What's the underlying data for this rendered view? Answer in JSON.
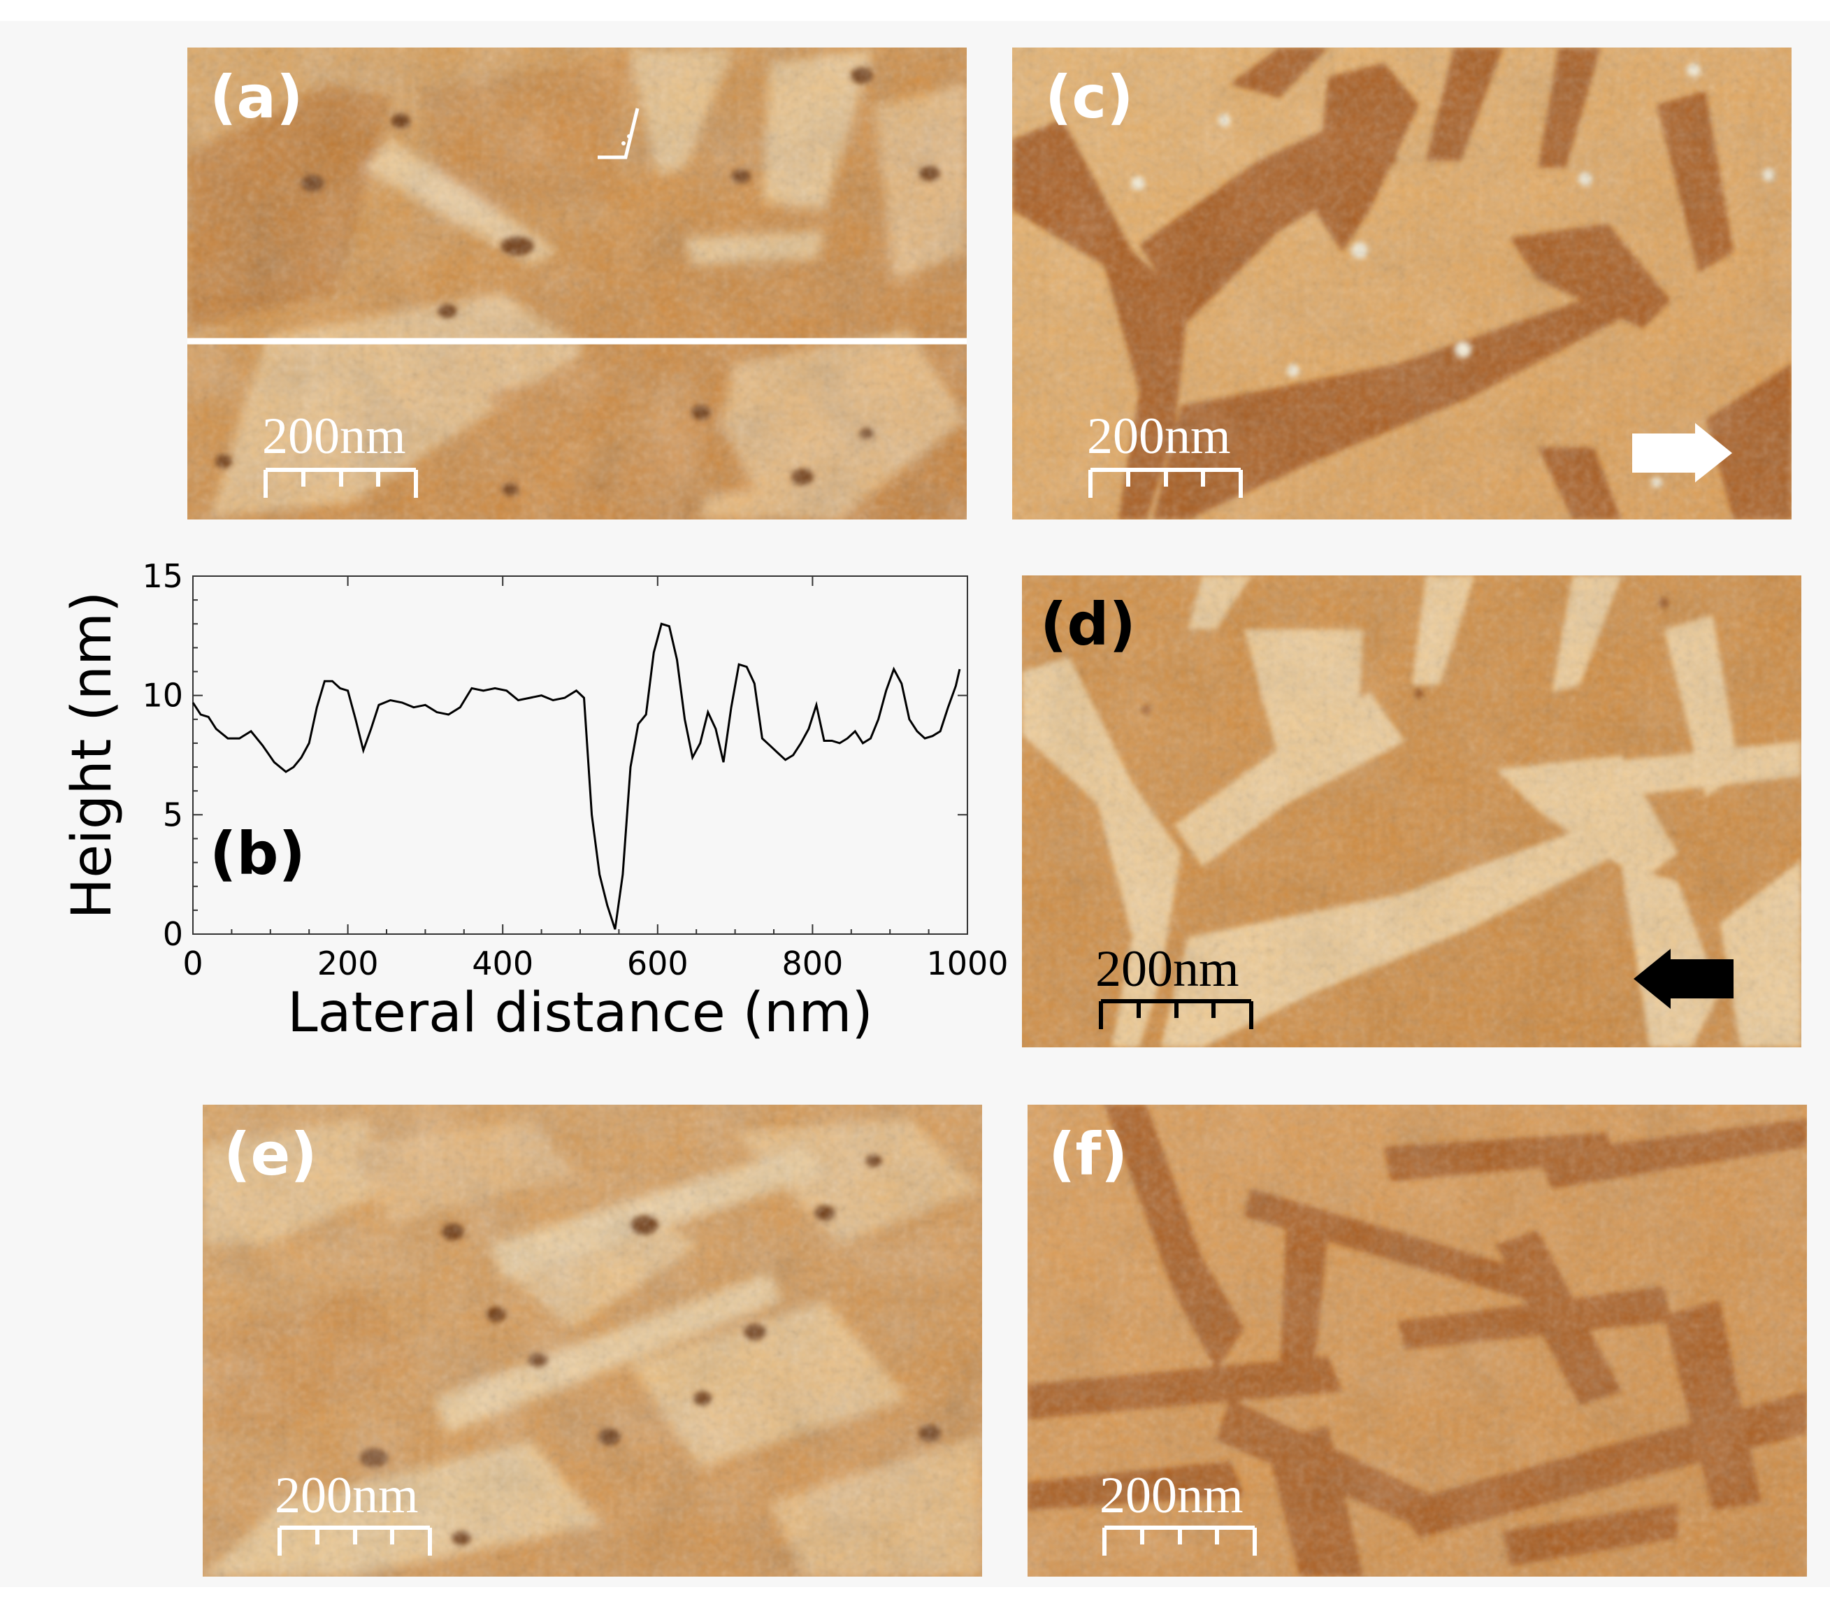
{
  "figure": {
    "panels": [
      {
        "id": "a",
        "label": "(a)",
        "scale_bar": "200nm",
        "label_color": "#ffffff",
        "type": "afm-height"
      },
      {
        "id": "c",
        "label": "(c)",
        "scale_bar": "200nm",
        "label_color": "#ffffff",
        "type": "afm-phase",
        "arrow": "right",
        "arrow_color": "#ffffff"
      },
      {
        "id": "d",
        "label": "(d)",
        "scale_bar": "200nm",
        "label_color": "#000000",
        "type": "afm-amplitude",
        "arrow": "left",
        "arrow_color": "#000000"
      },
      {
        "id": "e",
        "label": "(e)",
        "scale_bar": "200nm",
        "label_color": "#ffffff",
        "type": "afm-height"
      },
      {
        "id": "f",
        "label": "(f)",
        "scale_bar": "200nm",
        "label_color": "#ffffff",
        "type": "afm-phase"
      }
    ],
    "colors": {
      "afm_dark": "#7a3a08",
      "afm_mid": "#c97a2c",
      "afm_light": "#f3cf98",
      "plot_background": "#f7f7f7",
      "line_profile": "#000000"
    }
  },
  "chart_data": {
    "type": "line",
    "panel_label": "(b)",
    "xlabel": "Lateral distance (nm)",
    "ylabel": "Height (nm)",
    "xlim": [
      0,
      1000
    ],
    "ylim": [
      0,
      15
    ],
    "xticks": [
      0,
      200,
      400,
      600,
      800,
      1000
    ],
    "yticks": [
      0,
      5,
      10,
      15
    ],
    "grid": false,
    "series": [
      {
        "x": [
          0,
          10,
          20,
          30,
          45,
          60,
          75,
          90,
          105,
          120,
          130,
          140,
          150,
          160,
          170,
          180,
          190,
          200,
          210,
          220,
          230,
          240,
          255,
          270,
          285,
          300,
          315,
          330,
          345,
          360,
          375,
          390,
          405,
          420,
          435,
          450,
          465,
          480,
          495,
          505,
          515,
          525,
          535,
          545,
          555,
          565,
          575,
          585,
          595,
          605,
          615,
          625,
          635,
          645,
          655,
          665,
          675,
          685,
          695,
          705,
          715,
          725,
          735,
          745,
          755,
          765,
          775,
          785,
          795,
          805,
          815,
          825,
          835,
          845,
          855,
          865,
          875,
          885,
          895,
          905,
          915,
          925,
          935,
          945,
          955,
          965,
          975,
          985,
          990
        ],
        "y": [
          9.7,
          9.2,
          9.1,
          8.6,
          8.2,
          8.2,
          8.5,
          7.9,
          7.2,
          6.8,
          7.0,
          7.4,
          8.0,
          9.5,
          10.6,
          10.6,
          10.3,
          10.2,
          9.0,
          7.7,
          8.6,
          9.6,
          9.8,
          9.7,
          9.5,
          9.6,
          9.3,
          9.2,
          9.5,
          10.3,
          10.2,
          10.3,
          10.2,
          9.8,
          9.9,
          10.0,
          9.8,
          9.9,
          10.2,
          9.9,
          5.0,
          2.5,
          1.2,
          0.2,
          2.5,
          7.0,
          8.8,
          9.2,
          11.8,
          13.0,
          12.9,
          11.5,
          9.0,
          7.4,
          8.0,
          9.3,
          8.6,
          7.2,
          9.5,
          11.3,
          11.2,
          10.5,
          8.2,
          7.9,
          7.6,
          7.3,
          7.5,
          8.0,
          8.6,
          9.6,
          8.1,
          8.1,
          8.0,
          8.2,
          8.5,
          8.0,
          8.2,
          9.0,
          10.2,
          11.1,
          10.5,
          9.0,
          8.5,
          8.2,
          8.3,
          8.5,
          9.5,
          10.4,
          11.1
        ]
      }
    ]
  }
}
